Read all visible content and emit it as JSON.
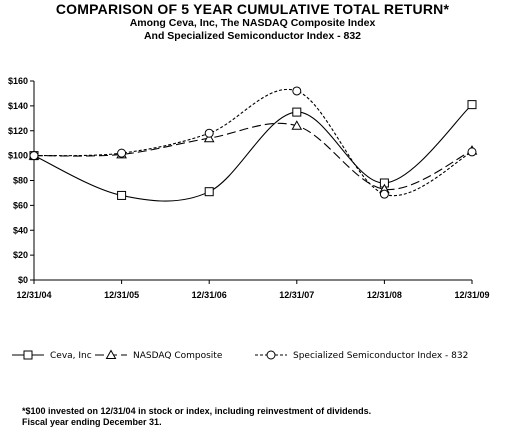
{
  "title": "COMPARISON OF 5 YEAR CUMULATIVE TOTAL RETURN*",
  "subtitle_line1": "Among Ceva, Inc, The NASDAQ Composite Index",
  "subtitle_line2": "And Specialized Semiconductor Index - 832",
  "footnote_line1": "*$100 invested on 12/31/04 in stock or index, including reinvestment of dividends.",
  "footnote_line2": "Fiscal year ending December 31.",
  "chart_data": {
    "type": "line",
    "categories": [
      "12/31/04",
      "12/31/05",
      "12/31/06",
      "12/31/07",
      "12/31/08",
      "12/31/09"
    ],
    "y_ticks": [
      "$0",
      "$20",
      "$40",
      "$60",
      "$80",
      "$100",
      "$120",
      "$140",
      "$160"
    ],
    "ylim": [
      0,
      160
    ],
    "grid": false,
    "legend_position": "bottom",
    "series": [
      {
        "name": "Ceva, Inc",
        "values": [
          100,
          68,
          71,
          135,
          78,
          141
        ],
        "marker": "square",
        "dash": "solid"
      },
      {
        "name": "NASDAQ Composite",
        "values": [
          100,
          101,
          114,
          124,
          73,
          104
        ],
        "marker": "triangle",
        "dash": "long-dash"
      },
      {
        "name": "Specialized Semiconductor Index - 832",
        "values": [
          100,
          102,
          118,
          152,
          69,
          103
        ],
        "marker": "circle",
        "dash": "short-dash"
      }
    ]
  }
}
